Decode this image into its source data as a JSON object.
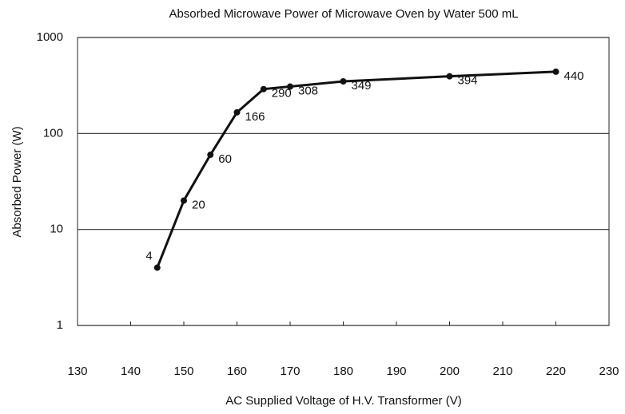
{
  "chart_data": {
    "type": "line",
    "title": "Absorbed Microwave Power of Microwave Oven by Water 500 mL",
    "x_label": "AC Supplied Voltage of H.V. Transformer (V)",
    "y_label": "Absorbed Power (W)",
    "x": [
      145,
      150,
      155,
      160,
      165,
      170,
      180,
      200,
      220
    ],
    "series": [
      {
        "name": "Absorbed Power",
        "color": "#111111",
        "values": [
          4,
          20,
          60,
          166,
          290,
          308,
          349,
          394,
          440
        ]
      }
    ],
    "xlim": [
      130,
      230
    ],
    "xticks": [
      130,
      140,
      150,
      160,
      170,
      180,
      190,
      200,
      210,
      220,
      230
    ],
    "ylim": [
      1,
      1000
    ],
    "yticks": [
      1,
      10,
      100,
      1000
    ],
    "log_y": true,
    "grid": true,
    "data_labels": true
  }
}
